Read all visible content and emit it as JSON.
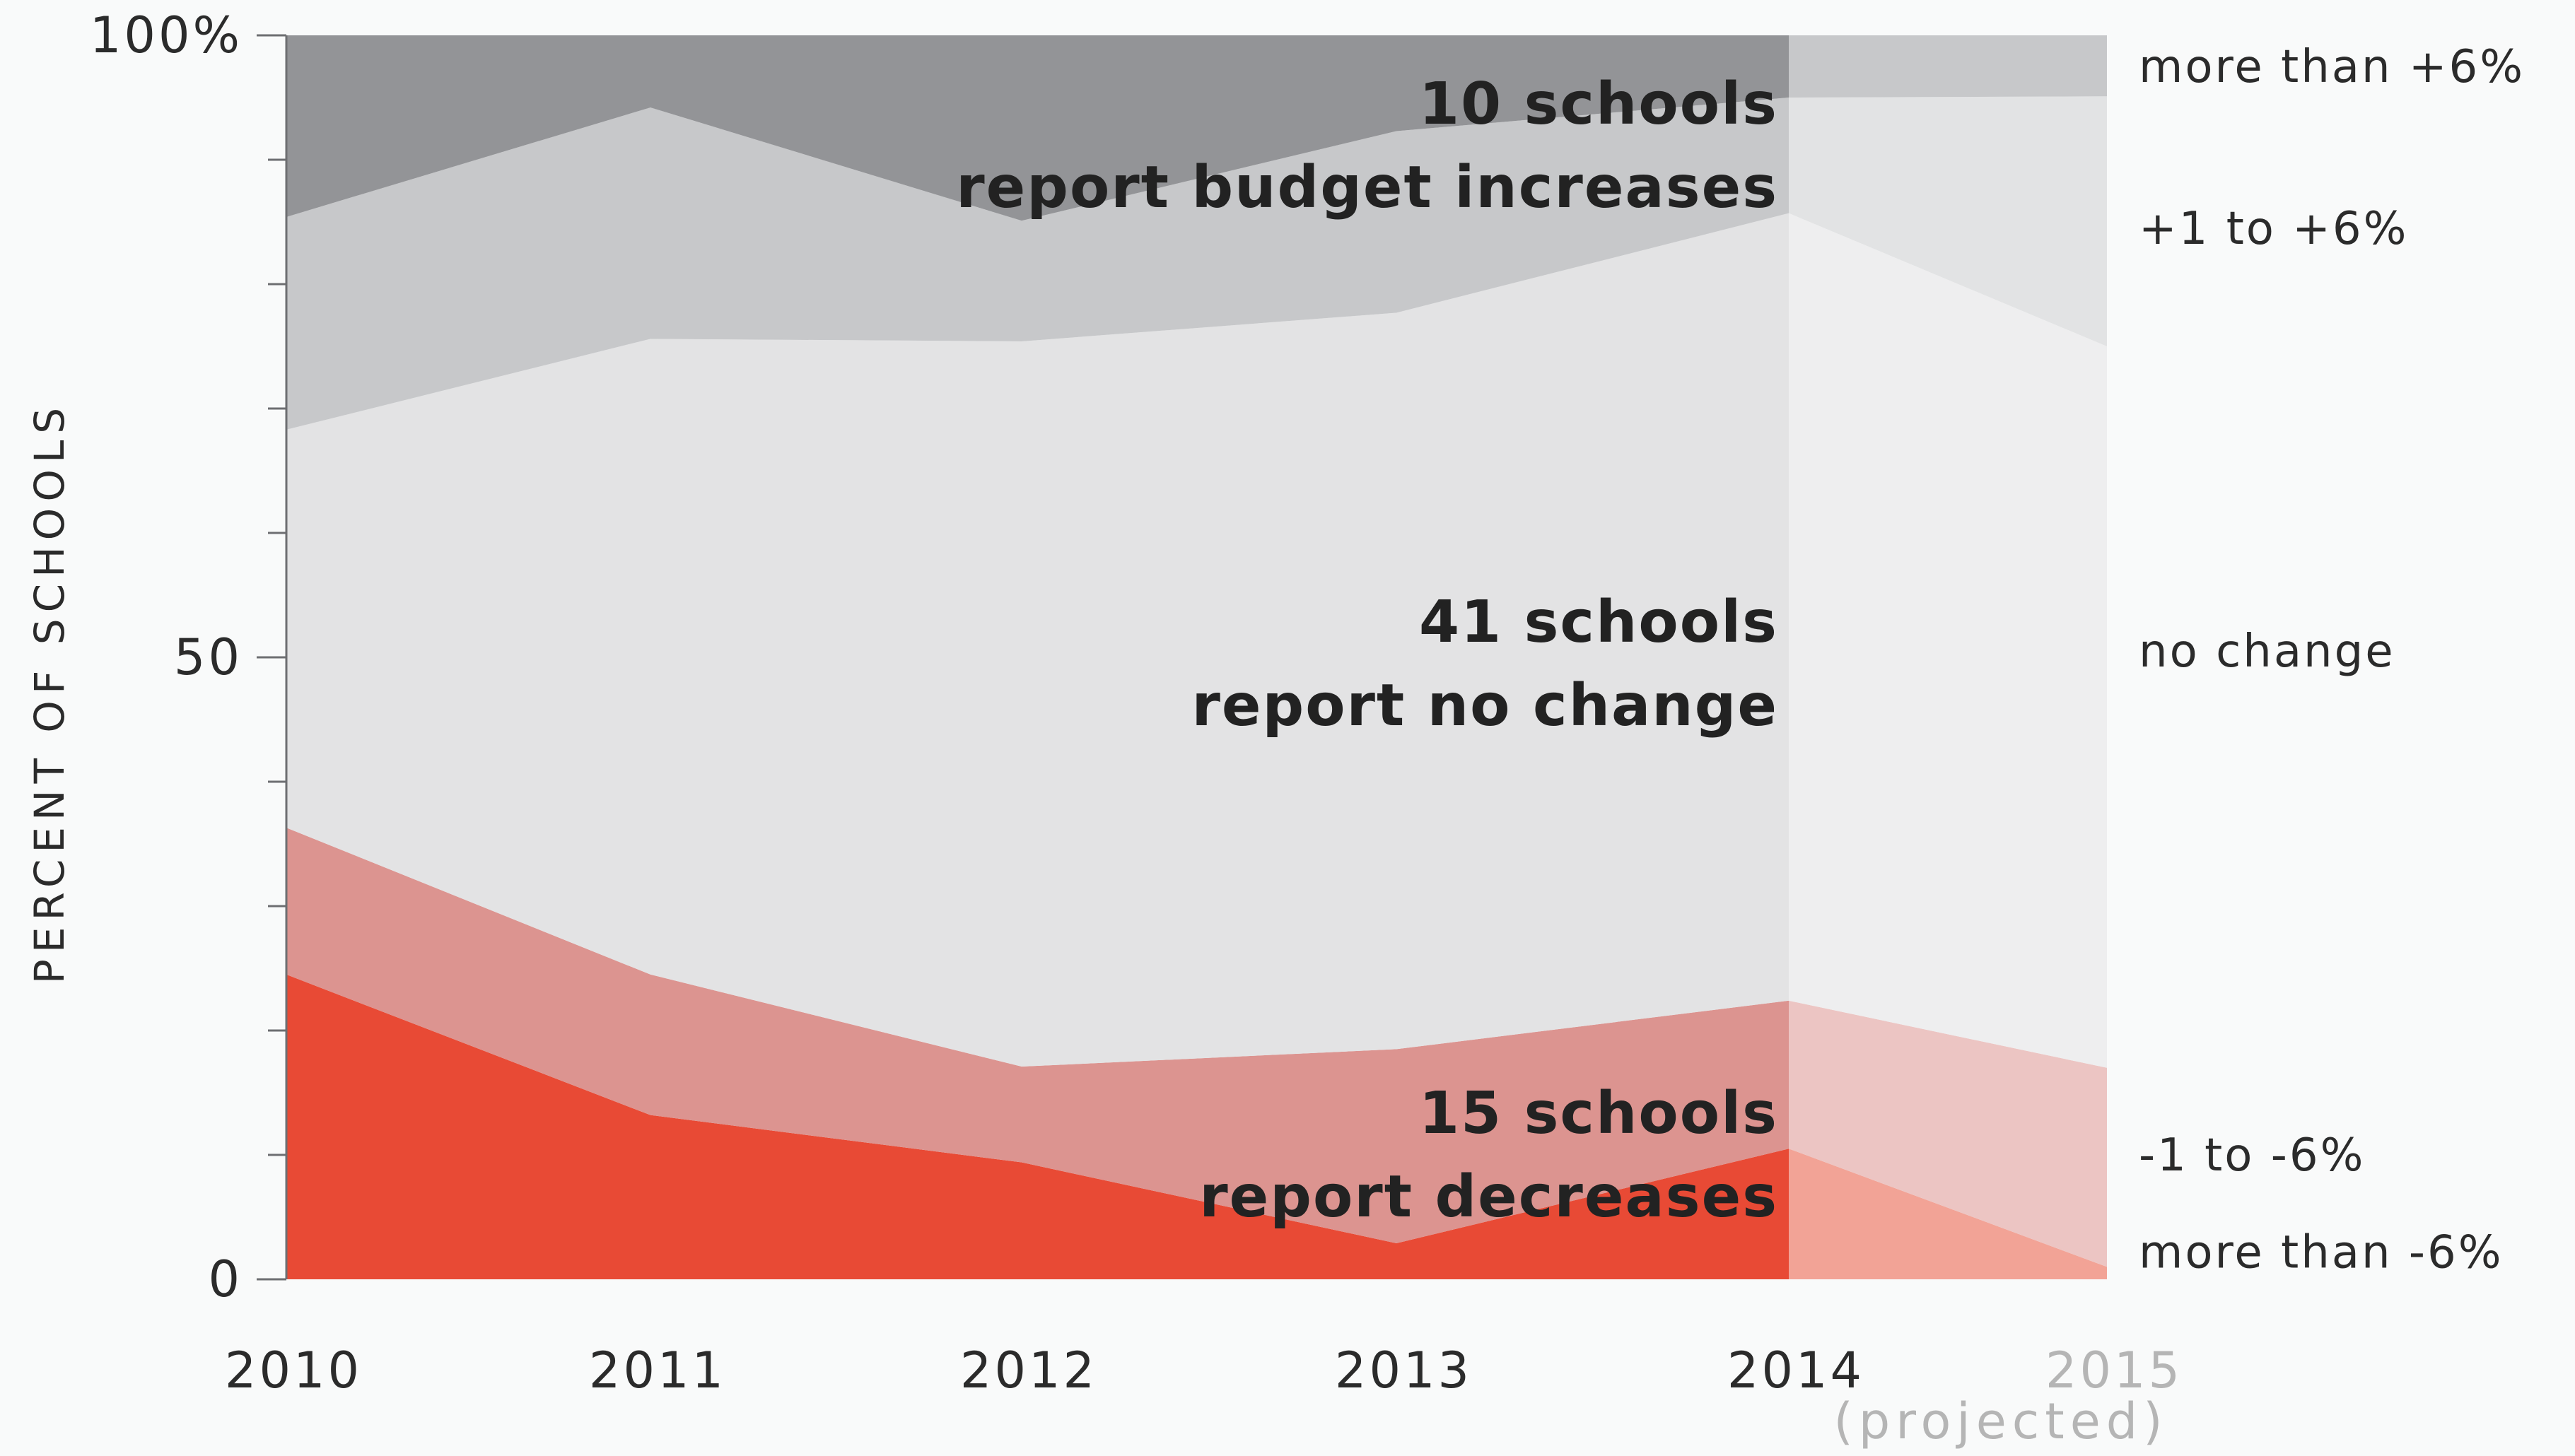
{
  "chart_data": {
    "type": "area",
    "stacked": true,
    "x": [
      "2010",
      "2011",
      "2012",
      "2013",
      "2014",
      "2015"
    ],
    "x_sublabels": [
      "",
      "",
      "",
      "",
      "",
      "(projected)"
    ],
    "projected_from": "2014",
    "ylabel": "PERCENT OF SCHOOLS",
    "ylim": [
      0,
      100
    ],
    "yticks": [
      0,
      50,
      100
    ],
    "ytick_labels": [
      "0",
      "50",
      "100%"
    ],
    "series": [
      {
        "name": "more than -6%",
        "values": [
          24.5,
          13.2,
          9.4,
          2.9,
          10.5,
          1.0
        ],
        "color": "#e84a35",
        "projected_color": "#f2a396"
      },
      {
        "name": "-1  to  -6%",
        "values": [
          11.8,
          11.3,
          7.7,
          15.6,
          11.9,
          16.0
        ],
        "color": "#dc9490",
        "projected_color": "#ecc5c3"
      },
      {
        "name": "no change",
        "values": [
          32.0,
          51.1,
          58.3,
          59.2,
          63.3,
          58.0
        ],
        "color": "#e3e3e4",
        "projected_color": "#eeeeef"
      },
      {
        "name": "+1  to  +6%",
        "values": [
          17.1,
          18.6,
          9.7,
          14.6,
          9.3,
          20.1
        ],
        "color": "#c7c8ca",
        "projected_color": "#e2e3e4"
      },
      {
        "name": "more than +6%",
        "values": [
          14.6,
          5.8,
          14.9,
          7.7,
          5.0,
          4.9
        ],
        "color": "#939497",
        "projected_color": "#c7c8ca"
      }
    ],
    "annotations": [
      {
        "lines": [
          "10 schools",
          "report budget increases"
        ]
      },
      {
        "lines": [
          "41 schools",
          "report no change"
        ]
      },
      {
        "lines": [
          "15 schools",
          "report decreases"
        ]
      }
    ]
  }
}
